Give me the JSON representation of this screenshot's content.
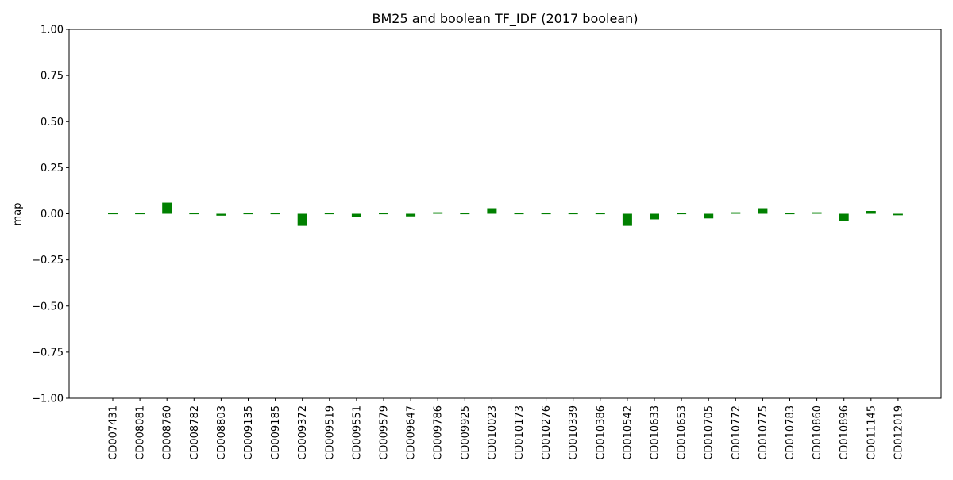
{
  "chart_data": {
    "type": "bar",
    "title": "BM25 and boolean TF_IDF (2017 boolean)",
    "xlabel": "",
    "ylabel": "map",
    "ylim": [
      -1.0,
      1.0
    ],
    "yticks": [
      "1.00",
      "0.75",
      "0.50",
      "0.25",
      "0.00",
      "−0.25",
      "−0.50",
      "−0.75",
      "−1.00"
    ],
    "ytick_values": [
      1.0,
      0.75,
      0.5,
      0.25,
      0.0,
      -0.25,
      -0.5,
      -0.75,
      -1.0
    ],
    "grid": false,
    "bar_color": "#008000",
    "categories": [
      "CD007431",
      "CD008081",
      "CD008760",
      "CD008782",
      "CD008803",
      "CD009135",
      "CD009185",
      "CD009372",
      "CD009519",
      "CD009551",
      "CD009579",
      "CD009647",
      "CD009786",
      "CD009925",
      "CD010023",
      "CD010173",
      "CD010276",
      "CD010339",
      "CD010386",
      "CD010542",
      "CD010633",
      "CD010653",
      "CD010705",
      "CD010772",
      "CD010775",
      "CD010783",
      "CD010860",
      "CD010896",
      "CD011145",
      "CD012019"
    ],
    "values": [
      0.003,
      0.003,
      0.06,
      -0.003,
      -0.01,
      -0.003,
      0.003,
      -0.065,
      0.0,
      -0.018,
      -0.003,
      -0.014,
      0.008,
      0.0,
      0.03,
      0.0,
      0.0,
      -0.003,
      0.0,
      -0.065,
      -0.03,
      0.003,
      -0.025,
      0.008,
      0.03,
      0.0,
      0.008,
      -0.038,
      0.015,
      -0.008
    ]
  }
}
